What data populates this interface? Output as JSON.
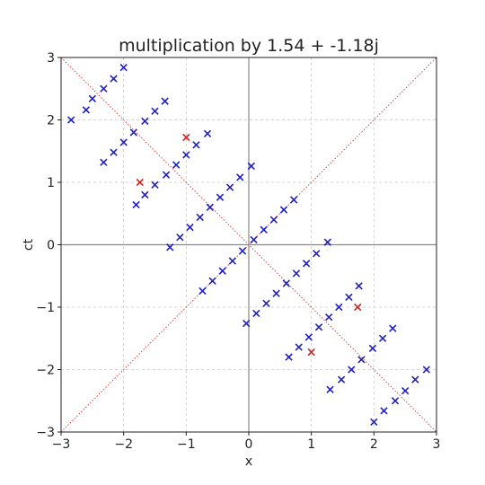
{
  "chart_data": {
    "type": "scatter",
    "title": "multiplication by 1.54 + -1.18j",
    "xlabel": "x",
    "ylabel": "ct",
    "xlim": [
      -3,
      3
    ],
    "ylim": [
      -3,
      3
    ],
    "xticks": [
      -3,
      -2,
      -1,
      0,
      1,
      2,
      3
    ],
    "yticks": [
      -3,
      -2,
      -1,
      0,
      1,
      2,
      3
    ],
    "xtick_labels": [
      "−3",
      "−2",
      "−1",
      "0",
      "1",
      "2",
      "3"
    ],
    "ytick_labels": [
      "−3",
      "−2",
      "−1",
      "0",
      "1",
      "2",
      "3"
    ],
    "grid": true,
    "reference_lines": [
      {
        "from": [
          -3,
          -3
        ],
        "to": [
          3,
          3
        ],
        "color": "#cc3333",
        "style": "dotted"
      },
      {
        "from": [
          -3,
          3
        ],
        "to": [
          3,
          -3
        ],
        "color": "#cc3333",
        "style": "dotted"
      }
    ],
    "series": [
      {
        "marker": "x",
        "color": "#1f1fbf",
        "points": [
          [
            -2.84,
            2.0
          ],
          [
            -2.6,
            2.16
          ],
          [
            -2.5,
            2.34
          ],
          [
            -2.32,
            2.5
          ],
          [
            -2.16,
            2.66
          ],
          [
            -2.0,
            2.84
          ],
          [
            -2.32,
            1.32
          ],
          [
            -2.16,
            1.48
          ],
          [
            -2.0,
            1.64
          ],
          [
            -1.84,
            1.8
          ],
          [
            -1.66,
            1.98
          ],
          [
            -1.5,
            2.14
          ],
          [
            -1.34,
            2.3
          ],
          [
            -1.8,
            0.64
          ],
          [
            -1.66,
            0.8
          ],
          [
            -1.5,
            0.96
          ],
          [
            -1.32,
            1.12
          ],
          [
            -1.16,
            1.28
          ],
          [
            -1.0,
            1.44
          ],
          [
            -0.84,
            1.6
          ],
          [
            -0.66,
            1.78
          ],
          [
            -1.26,
            -0.04
          ],
          [
            -1.1,
            0.12
          ],
          [
            -0.94,
            0.28
          ],
          [
            -0.78,
            0.44
          ],
          [
            -0.62,
            0.6
          ],
          [
            -0.46,
            0.76
          ],
          [
            -0.3,
            0.92
          ],
          [
            -0.14,
            1.08
          ],
          [
            0.04,
            1.26
          ],
          [
            -0.74,
            -0.74
          ],
          [
            -0.58,
            -0.58
          ],
          [
            -0.42,
            -0.42
          ],
          [
            -0.26,
            -0.26
          ],
          [
            -0.1,
            -0.1
          ],
          [
            0.08,
            0.08
          ],
          [
            0.24,
            0.24
          ],
          [
            0.4,
            0.4
          ],
          [
            0.56,
            0.56
          ],
          [
            0.72,
            0.72
          ],
          [
            -0.04,
            -1.26
          ],
          [
            0.12,
            -1.1
          ],
          [
            0.28,
            -0.94
          ],
          [
            0.44,
            -0.78
          ],
          [
            0.6,
            -0.62
          ],
          [
            0.76,
            -0.46
          ],
          [
            0.92,
            -0.3
          ],
          [
            1.08,
            -0.14
          ],
          [
            1.26,
            0.04
          ],
          [
            0.64,
            -1.8
          ],
          [
            0.8,
            -1.64
          ],
          [
            0.96,
            -1.48
          ],
          [
            1.12,
            -1.32
          ],
          [
            1.28,
            -1.16
          ],
          [
            1.44,
            -1.0
          ],
          [
            1.6,
            -0.84
          ],
          [
            1.76,
            -0.66
          ],
          [
            1.3,
            -2.32
          ],
          [
            1.48,
            -2.16
          ],
          [
            1.64,
            -2.0
          ],
          [
            1.8,
            -1.84
          ],
          [
            1.98,
            -1.66
          ],
          [
            2.14,
            -1.5
          ],
          [
            2.3,
            -1.34
          ],
          [
            2.0,
            -2.84
          ],
          [
            2.16,
            -2.66
          ],
          [
            2.34,
            -2.5
          ],
          [
            2.5,
            -2.34
          ],
          [
            2.66,
            -2.16
          ],
          [
            2.84,
            -2.0
          ]
        ]
      },
      {
        "marker": "x",
        "color": "#d11f1f",
        "points": [
          [
            -1.0,
            1.72
          ],
          [
            -1.74,
            1.0
          ],
          [
            1.74,
            -1.0
          ],
          [
            1.0,
            -1.72
          ]
        ]
      }
    ]
  }
}
